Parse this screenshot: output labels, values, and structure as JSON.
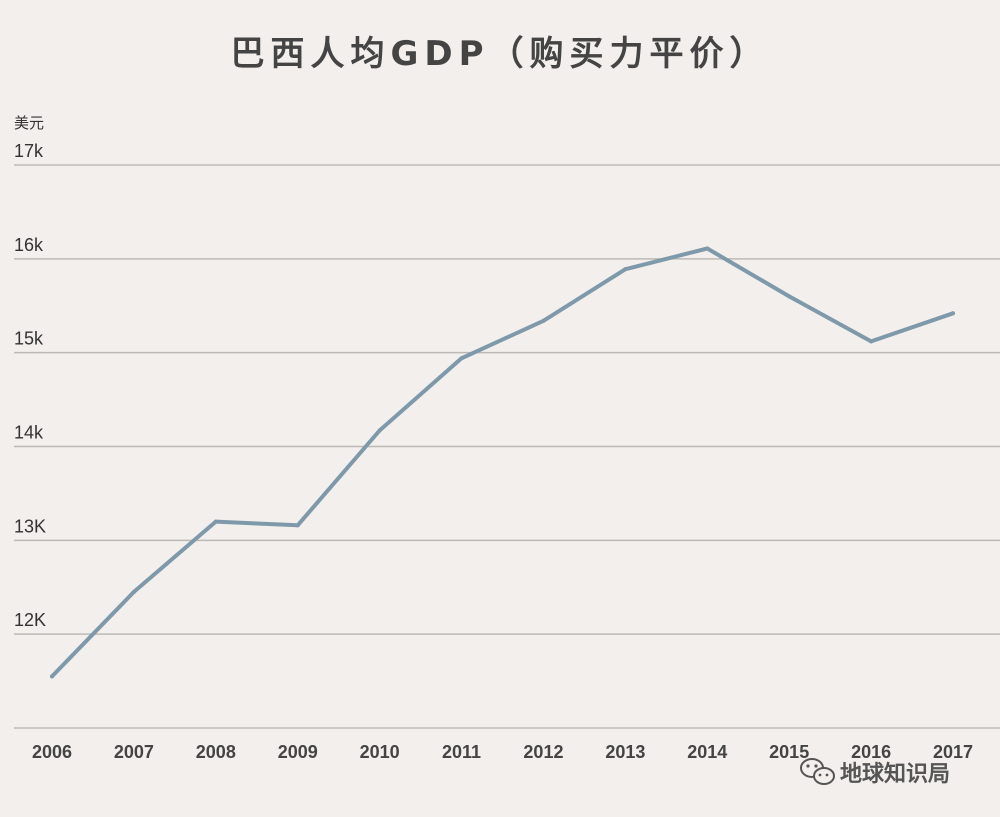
{
  "chart_data": {
    "type": "line",
    "title": "巴西人均GDP（购买力平价）",
    "ylabel": "美元",
    "xlabel": "",
    "x": [
      "2006",
      "2007",
      "2008",
      "2009",
      "2010",
      "2011",
      "2012",
      "2013",
      "2014",
      "2015",
      "2016",
      "2017"
    ],
    "series": [
      {
        "values": [
          11.55,
          12.45,
          13.2,
          13.16,
          14.17,
          14.94,
          15.34,
          15.89,
          16.11,
          15.6,
          15.12,
          15.42
        ]
      }
    ],
    "ylim": [
      11,
      17
    ],
    "yticks": [
      {
        "value": 17,
        "label": "17k"
      },
      {
        "value": 16,
        "label": "16k"
      },
      {
        "value": 15,
        "label": "15k"
      },
      {
        "value": 14,
        "label": "14k"
      },
      {
        "value": 13,
        "label": "13K"
      },
      {
        "value": 12,
        "label": "12K"
      }
    ],
    "grid": true,
    "legend": "none",
    "line_color": "#7e9aaa"
  },
  "watermark": {
    "text": "地球知识局",
    "icon": "wechat-icon"
  }
}
